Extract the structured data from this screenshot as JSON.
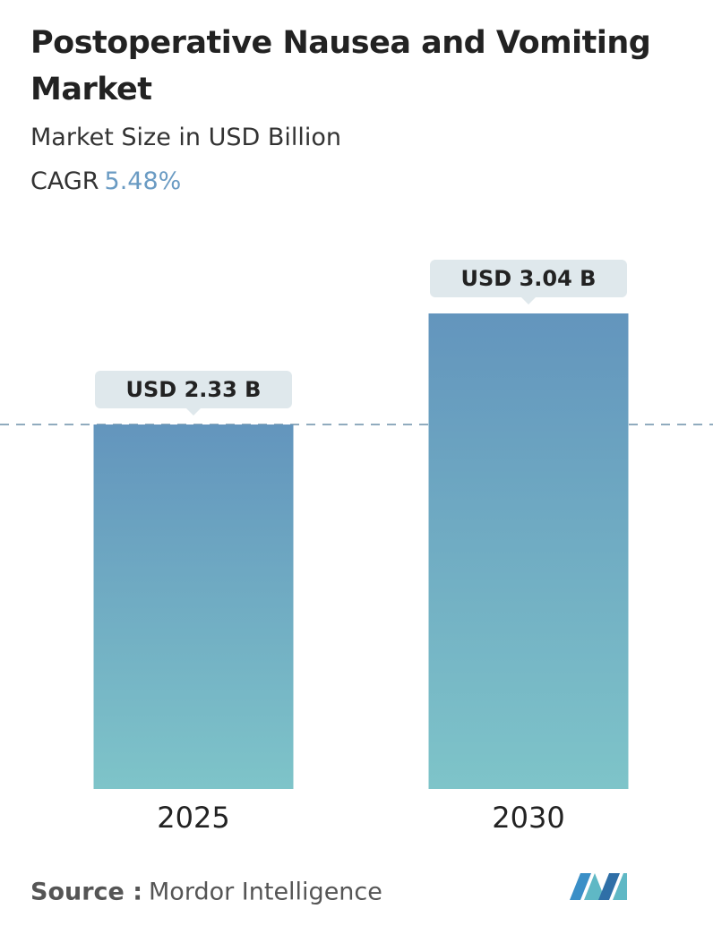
{
  "chart_data": {
    "type": "bar",
    "title": "Postoperative Nausea and Vomiting Market",
    "subtitle": "Market Size in USD Billion",
    "cagr_label": "CAGR",
    "cagr_value": "5.48%",
    "categories": [
      "2025",
      "2030"
    ],
    "values": [
      2.33,
      3.04
    ],
    "value_labels": [
      "USD 2.33 B",
      "USD 3.04 B"
    ],
    "color_top": "#6395bd",
    "color_bottom": "#7ec4c9",
    "source_label": "Source :",
    "source": "Mordor Intelligence"
  }
}
